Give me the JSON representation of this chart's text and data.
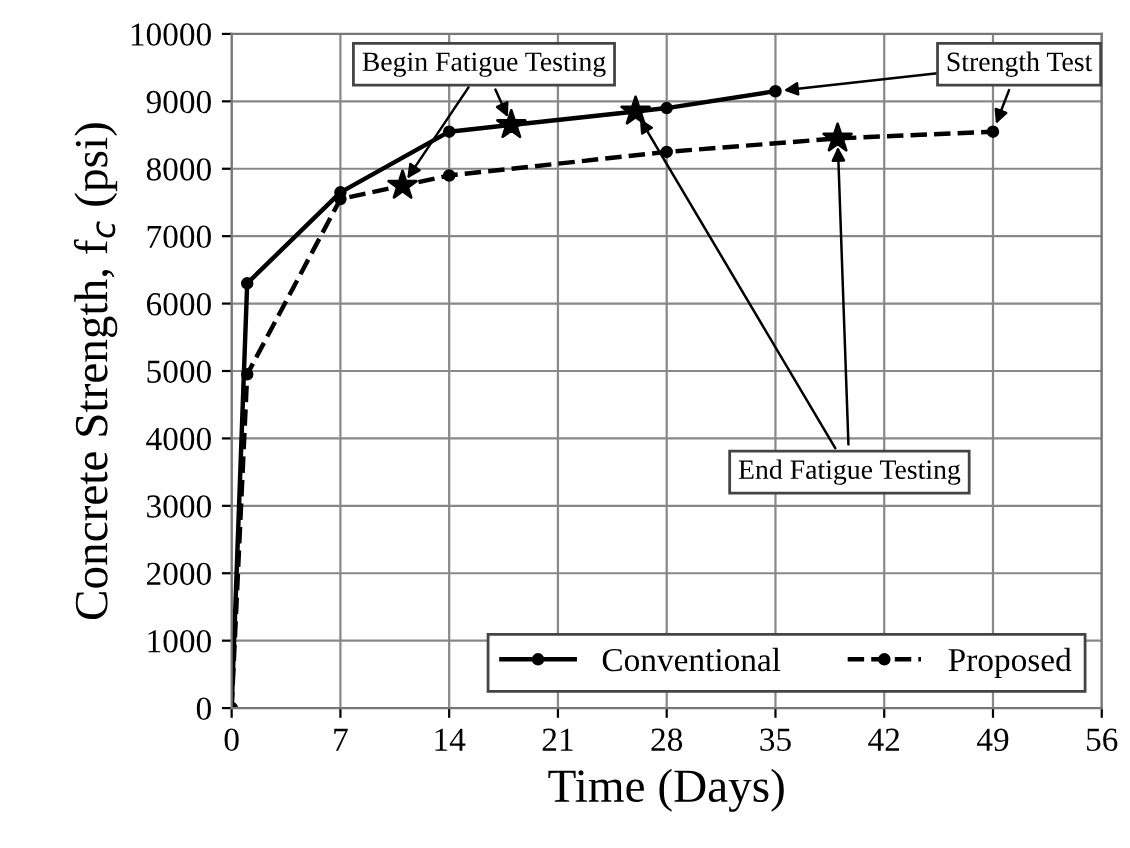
{
  "chart_data": {
    "type": "line",
    "xlabel": "Time (Days)",
    "ylabel": "Concrete Strength, f$_{c}$ (psi)",
    "xlim": [
      0,
      56
    ],
    "xticks": [
      0,
      7,
      14,
      21,
      28,
      35,
      42,
      49,
      56
    ],
    "ylim": [
      0,
      10000
    ],
    "yticks": [
      0,
      1000,
      2000,
      3000,
      4000,
      5000,
      6000,
      7000,
      8000,
      9000,
      10000
    ],
    "grid": true,
    "legend": "bottom right",
    "marker": "circle",
    "series": [
      {
        "name": "Conventional",
        "color": "#000000",
        "line_style": "solid",
        "x": [
          0,
          1,
          7,
          14,
          18,
          26,
          28,
          35
        ],
        "values": [
          0,
          6300,
          7650,
          8550,
          8650,
          8850,
          8900,
          9150
        ]
      },
      {
        "name": "Proposed",
        "color": "#000000",
        "line_style": "dashed",
        "x": [
          0,
          1,
          7,
          11,
          14,
          28,
          39,
          49
        ],
        "values": [
          0,
          4950,
          7550,
          7750,
          7900,
          8250,
          8450,
          8550
        ]
      },
      {
        "type": "scatter",
        "marker": "star",
        "color": "#000000",
        "x": [
          18,
          11,
          26,
          39
        ],
        "values": [
          8650,
          7750,
          8850,
          8450
        ]
      }
    ],
    "annotations": [
      {
        "text": "Begin Fatigue Testing",
        "x": 18,
        "y": 8650
      },
      {
        "text": "End Fatigue Testing",
        "x": 26,
        "y": 8850
      },
      {
        "text": "Strength Test",
        "x": 35,
        "y": 9150
      }
    ]
  }
}
